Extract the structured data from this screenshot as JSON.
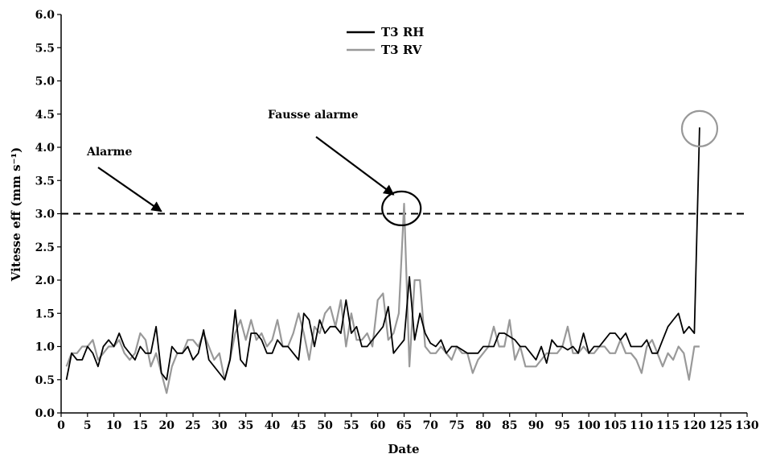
{
  "chart_data": {
    "type": "line",
    "xlabel": "Date",
    "ylabel": "Vitesse eff (mm s⁻¹)",
    "xlim": [
      0,
      130
    ],
    "ylim": [
      0,
      6
    ],
    "x_ticks": [
      0,
      5,
      10,
      15,
      20,
      25,
      30,
      35,
      40,
      45,
      50,
      55,
      60,
      65,
      70,
      75,
      80,
      85,
      90,
      95,
      100,
      105,
      110,
      115,
      120,
      125,
      130
    ],
    "y_ticks": [
      "0.0",
      "0.5",
      "1.0",
      "1.5",
      "2.0",
      "2.5",
      "3.0",
      "3.5",
      "4.0",
      "4.5",
      "5.0",
      "5.5",
      "6.0"
    ],
    "grid": false,
    "legend_position": "top-center",
    "threshold": {
      "value": 3.0,
      "style": "dashed"
    },
    "colors": {
      "T3 RH": "#000000",
      "T3 RV": "#999999",
      "circle_rh": "#000000",
      "circle_rv": "#999999"
    },
    "series": [
      {
        "name": "T3 RH",
        "x": [
          1,
          2,
          3,
          4,
          5,
          6,
          7,
          8,
          9,
          10,
          11,
          12,
          13,
          14,
          15,
          16,
          17,
          18,
          19,
          20,
          21,
          22,
          23,
          24,
          25,
          26,
          27,
          28,
          29,
          30,
          31,
          32,
          33,
          34,
          35,
          36,
          37,
          38,
          39,
          40,
          41,
          42,
          43,
          44,
          45,
          46,
          47,
          48,
          49,
          50,
          51,
          52,
          53,
          54,
          55,
          56,
          57,
          58,
          59,
          60,
          61,
          62,
          63,
          64,
          65,
          66,
          67,
          68,
          69,
          70,
          71,
          72,
          73,
          74,
          75,
          76,
          77,
          78,
          79,
          80,
          81,
          82,
          83,
          84,
          85,
          86,
          87,
          88,
          89,
          90,
          91,
          92,
          93,
          94,
          95,
          96,
          97,
          98,
          99,
          100,
          101,
          102,
          103,
          104,
          105,
          106,
          107,
          108,
          109,
          110,
          111,
          112,
          113,
          114,
          115,
          116,
          117,
          118,
          119,
          120,
          121
        ],
        "values": [
          0.5,
          0.9,
          0.8,
          0.8,
          1.0,
          0.9,
          0.7,
          1.0,
          1.1,
          1.0,
          1.2,
          1.0,
          0.9,
          0.8,
          1.0,
          0.9,
          0.9,
          1.3,
          0.6,
          0.5,
          1.0,
          0.9,
          0.9,
          1.0,
          0.8,
          0.9,
          1.25,
          0.8,
          0.7,
          0.6,
          0.5,
          0.8,
          1.55,
          0.8,
          0.7,
          1.2,
          1.2,
          1.1,
          0.9,
          0.9,
          1.1,
          1.0,
          1.0,
          0.9,
          0.8,
          1.5,
          1.4,
          1.0,
          1.4,
          1.2,
          1.3,
          1.3,
          1.2,
          1.7,
          1.2,
          1.3,
          1.0,
          1.0,
          1.1,
          1.2,
          1.3,
          1.6,
          0.9,
          1.0,
          1.1,
          2.05,
          1.1,
          1.5,
          1.2,
          1.05,
          1.0,
          1.1,
          0.9,
          1.0,
          1.0,
          0.95,
          0.9,
          0.9,
          0.9,
          1.0,
          1.0,
          1.0,
          1.2,
          1.2,
          1.15,
          1.1,
          1.0,
          1.0,
          0.9,
          0.8,
          1.0,
          0.75,
          1.1,
          1.0,
          1.0,
          0.95,
          1.0,
          0.9,
          1.2,
          0.9,
          1.0,
          1.0,
          1.1,
          1.2,
          1.2,
          1.1,
          1.2,
          1.0,
          1.0,
          1.0,
          1.1,
          0.9,
          0.9,
          1.1,
          1.3,
          1.4,
          1.5,
          1.2,
          1.3,
          1.2,
          4.3
        ]
      },
      {
        "name": "T3 RV",
        "x": [
          1,
          2,
          3,
          4,
          5,
          6,
          7,
          8,
          9,
          10,
          11,
          12,
          13,
          14,
          15,
          16,
          17,
          18,
          19,
          20,
          21,
          22,
          23,
          24,
          25,
          26,
          27,
          28,
          29,
          30,
          31,
          32,
          33,
          34,
          35,
          36,
          37,
          38,
          39,
          40,
          41,
          42,
          43,
          44,
          45,
          46,
          47,
          48,
          49,
          50,
          51,
          52,
          53,
          54,
          55,
          56,
          57,
          58,
          59,
          60,
          61,
          62,
          63,
          64,
          65,
          66,
          67,
          68,
          69,
          70,
          71,
          72,
          73,
          74,
          75,
          76,
          77,
          78,
          79,
          80,
          81,
          82,
          83,
          84,
          85,
          86,
          87,
          88,
          89,
          90,
          91,
          92,
          93,
          94,
          95,
          96,
          97,
          98,
          99,
          100,
          101,
          102,
          103,
          104,
          105,
          106,
          107,
          108,
          109,
          110,
          111,
          112,
          113,
          114,
          115,
          116,
          117,
          118,
          119,
          120,
          121
        ],
        "values": [
          0.7,
          0.9,
          0.9,
          1.0,
          1.0,
          1.1,
          0.8,
          0.9,
          1.0,
          1.0,
          1.1,
          0.9,
          0.8,
          0.9,
          1.2,
          1.1,
          0.7,
          0.9,
          0.6,
          0.3,
          0.7,
          0.9,
          0.9,
          1.1,
          1.1,
          1.0,
          1.2,
          1.0,
          0.8,
          0.9,
          0.5,
          0.8,
          1.2,
          1.4,
          1.1,
          1.4,
          1.1,
          1.2,
          1.0,
          1.1,
          1.4,
          1.0,
          1.0,
          1.2,
          1.5,
          1.2,
          0.8,
          1.3,
          1.2,
          1.5,
          1.6,
          1.3,
          1.7,
          1.0,
          1.5,
          1.1,
          1.1,
          1.2,
          1.0,
          1.7,
          1.8,
          1.1,
          1.2,
          1.5,
          3.15,
          0.7,
          2.0,
          2.0,
          1.0,
          0.9,
          0.9,
          1.0,
          0.9,
          0.8,
          1.0,
          0.9,
          0.9,
          0.6,
          0.8,
          0.9,
          1.0,
          1.3,
          1.0,
          1.0,
          1.4,
          0.8,
          1.0,
          0.7,
          0.7,
          0.7,
          0.8,
          0.9,
          0.9,
          0.9,
          1.0,
          1.3,
          0.9,
          0.9,
          1.0,
          0.9,
          0.9,
          1.0,
          1.0,
          0.9,
          0.9,
          1.1,
          0.9,
          0.9,
          0.8,
          0.6,
          1.0,
          1.1,
          0.9,
          0.7,
          0.9,
          0.8,
          1.0,
          0.9,
          0.5,
          1.0,
          1.0
        ]
      }
    ],
    "annotations": [
      {
        "text": "Alarme",
        "arrow_to": [
          19,
          3.0
        ]
      },
      {
        "text": "Fausse alarme",
        "arrow_to": [
          63,
          3.25
        ]
      }
    ],
    "circles": [
      {
        "series": "T3 RH",
        "center": [
          64.5,
          3.08
        ]
      },
      {
        "series": "T3 RV",
        "center": [
          121,
          4.28
        ]
      }
    ]
  }
}
